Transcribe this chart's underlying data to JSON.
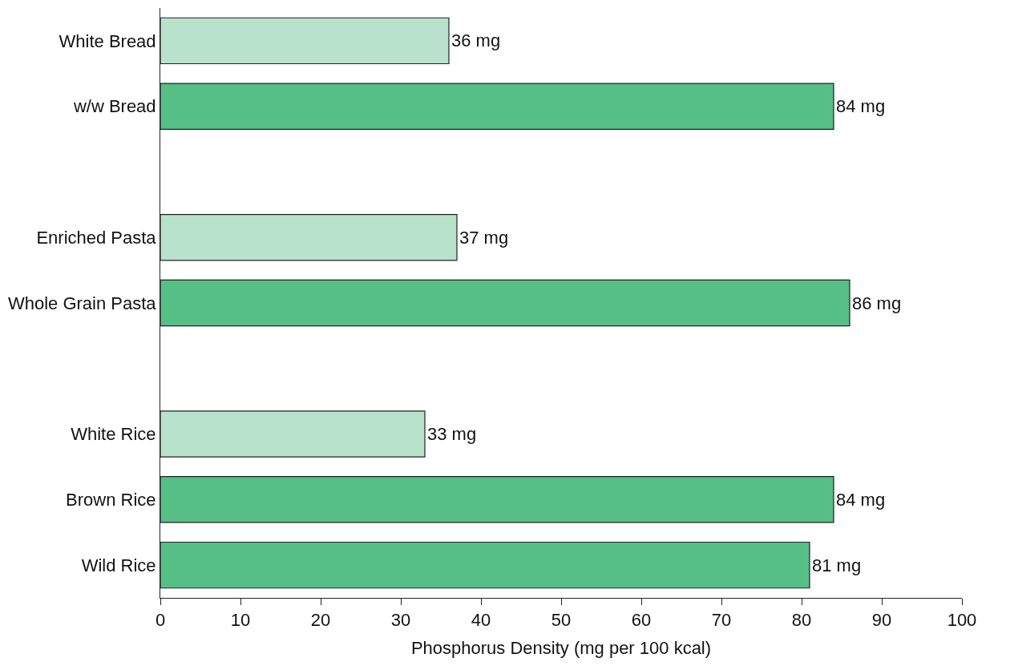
{
  "chart_data": {
    "type": "bar",
    "orientation": "horizontal",
    "categories": [
      "White Bread",
      "w/w Bread",
      null,
      "Enriched Pasta",
      "Whole Grain Pasta",
      null,
      "White Rice",
      "Brown Rice",
      "Wild Rice"
    ],
    "values": [
      36,
      84,
      null,
      37,
      86,
      null,
      33,
      84,
      81
    ],
    "colors": [
      "#b9e2cc",
      "#55bf86",
      null,
      "#b9e2cc",
      "#55bf86",
      null,
      "#b9e2cc",
      "#55bf86",
      "#55bf86"
    ],
    "value_labels": [
      "36 mg",
      "84 mg",
      null,
      "37 mg",
      "86 mg",
      null,
      "33 mg",
      "84 mg",
      "81 mg"
    ],
    "xlabel": "Phosphorus Density (mg per 100 kcal)",
    "xlim": [
      0,
      100
    ],
    "xticks": [
      0,
      10,
      20,
      30,
      40,
      50,
      60,
      70,
      80,
      90,
      100
    ]
  }
}
